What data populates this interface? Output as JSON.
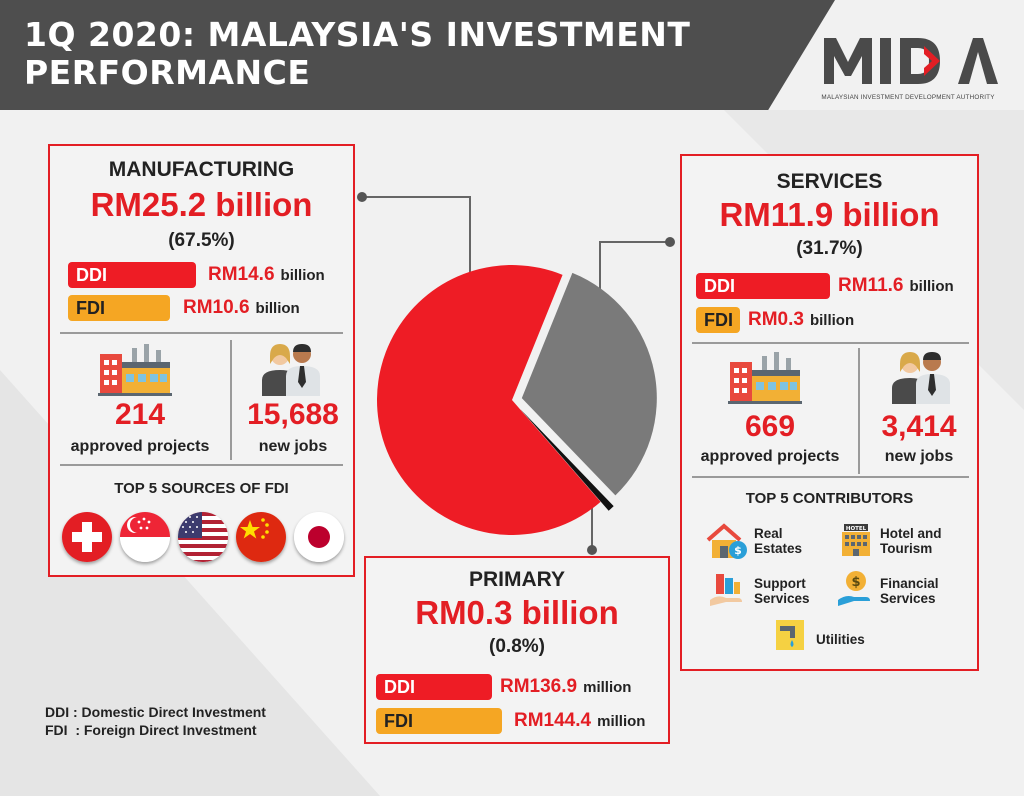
{
  "header": {
    "title_line1": "1Q 2020: MALAYSIA'S INVESTMENT",
    "title_line2": "PERFORMANCE",
    "logo_text": "MIDA",
    "logo_subtitle": "MALAYSIAN INVESTMENT DEVELOPMENT AUTHORITY"
  },
  "manufacturing": {
    "title": "MANUFACTURING",
    "amount": "RM25.2 billion",
    "percent": "(67.5%)",
    "ddi": {
      "label": "DDI",
      "value": "RM14.6",
      "unit": "billion"
    },
    "fdi": {
      "label": "FDI",
      "value": "RM10.6",
      "unit": "billion"
    },
    "projects": {
      "value": "214",
      "label": "approved projects"
    },
    "jobs": {
      "value": "15,688",
      "label": "new jobs"
    },
    "sources_title": "TOP 5 SOURCES OF FDI",
    "flags": [
      "switzerland-flag-icon",
      "singapore-flag-icon",
      "usa-flag-icon",
      "china-flag-icon",
      "japan-flag-icon"
    ]
  },
  "services": {
    "title": "SERVICES",
    "amount": "RM11.9 billion",
    "percent": "(31.7%)",
    "ddi": {
      "label": "DDI",
      "value": "RM11.6",
      "unit": "billion"
    },
    "fdi": {
      "label": "FDI",
      "value": "RM0.3",
      "unit": "billion"
    },
    "projects": {
      "value": "669",
      "label": "approved projects"
    },
    "jobs": {
      "value": "3,414",
      "label": "new jobs"
    },
    "contributors_title": "TOP 5 CONTRIBUTORS",
    "contributors": [
      {
        "line1": "Real",
        "line2": "Estates",
        "icon": "real-estate-icon"
      },
      {
        "line1": "Hotel and",
        "line2": "Tourism",
        "icon": "hotel-icon"
      },
      {
        "line1": "Support",
        "line2": "Services",
        "icon": "support-services-icon"
      },
      {
        "line1": "Financial",
        "line2": "Services",
        "icon": "financial-services-icon"
      },
      {
        "line1": "Utilities",
        "line2": "",
        "icon": "utilities-icon"
      }
    ]
  },
  "primary": {
    "title": "PRIMARY",
    "amount": "RM0.3 billion",
    "percent": "(0.8%)",
    "ddi": {
      "label": "DDI",
      "value": "RM136.9",
      "unit": "million"
    },
    "fdi": {
      "label": "FDI",
      "value": "RM144.4",
      "unit": "million"
    }
  },
  "pie": {
    "slices": [
      {
        "sector": "manufacturing",
        "percent": 67.5,
        "color": "#ee1c25"
      },
      {
        "sector": "services",
        "percent": 31.7,
        "color": "#7a7a7a"
      },
      {
        "sector": "primary",
        "percent": 0.8,
        "color": "#111111"
      }
    ]
  },
  "legend": {
    "ddi": "DDI : Domestic Direct Investment",
    "fdi": "FDI  : Foreign Direct Investment"
  },
  "colors": {
    "accent": "#e31e24",
    "header": "#4e4e4e",
    "fdi": "#f5a623",
    "services": "#7a7a7a"
  }
}
